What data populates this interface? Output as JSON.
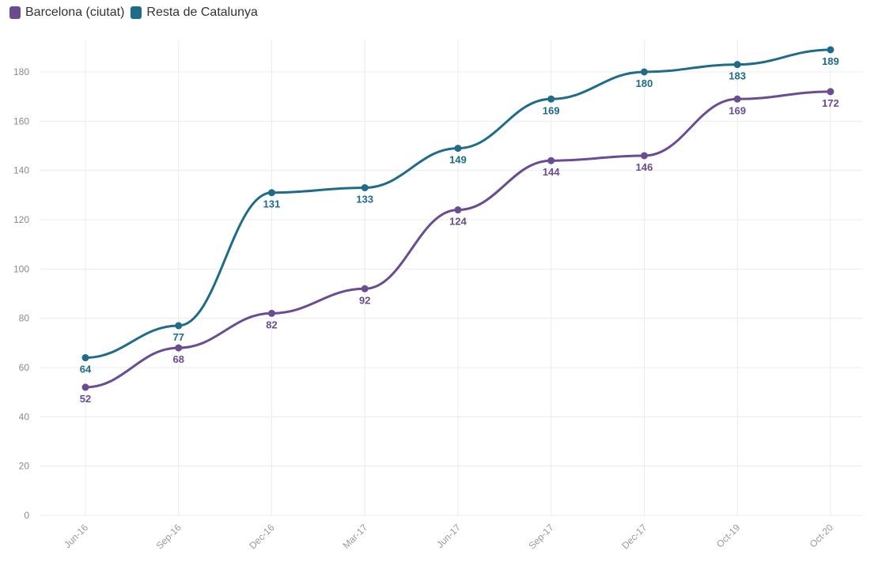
{
  "legend": {
    "items": [
      {
        "label": "Barcelona (ciutat)",
        "color": "#6a4c93"
      },
      {
        "label": "Resta de Catalunya",
        "color": "#1f6b8a"
      }
    ]
  },
  "chart_data": {
    "type": "line",
    "title": "",
    "xlabel": "",
    "ylabel": "",
    "ylim": [
      0,
      190
    ],
    "yticks": [
      0,
      20,
      40,
      60,
      80,
      100,
      120,
      140,
      160,
      180
    ],
    "grid": true,
    "legend_position": "top-left",
    "categories": [
      "Jun-16",
      "Sep-16",
      "Dec-16",
      "Mar-17",
      "Jun-17",
      "Sep-17",
      "Dec-17",
      "Oct-19",
      "Oct-20"
    ],
    "series": [
      {
        "name": "Barcelona (ciutat)",
        "color": "#6a4c93",
        "values": [
          52,
          68,
          82,
          92,
          124,
          144,
          146,
          169,
          172
        ]
      },
      {
        "name": "Resta de Catalunya",
        "color": "#1f6b8a",
        "values": [
          64,
          77,
          131,
          133,
          149,
          169,
          180,
          183,
          189
        ]
      }
    ]
  }
}
